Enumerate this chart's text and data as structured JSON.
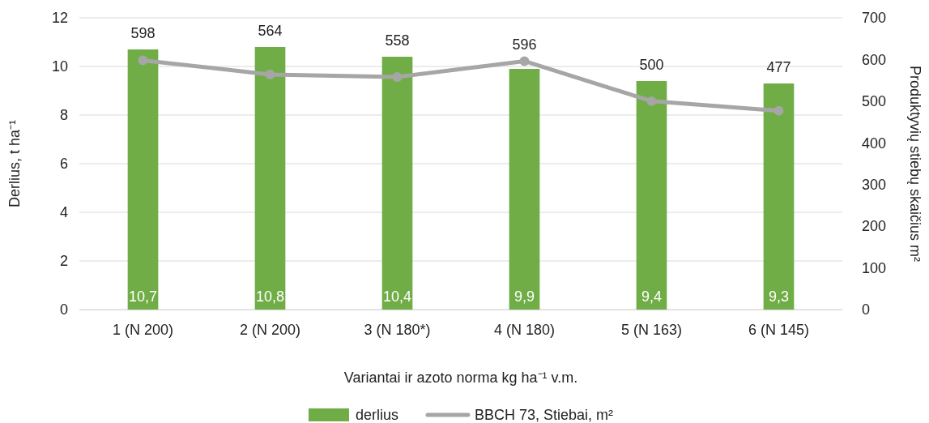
{
  "chart_data": {
    "type": "bar",
    "xlabel": "Variantai ir azoto norma kg ha⁻¹ v.m.",
    "ylabel": "Derlius, t ha⁻¹",
    "y2label": "Produktyvių stiebų skaičius m²",
    "categories": [
      "1 (N 200)",
      "2 (N 200)",
      "3 (N 180*)",
      "4 (N 180)",
      "5 (N 163)",
      "6 (N 145)"
    ],
    "series": [
      {
        "name": "derlius",
        "color": "#70ad47",
        "values": [
          10.7,
          10.8,
          10.4,
          9.9,
          9.4,
          9.3
        ],
        "value_labels": [
          "10,7",
          "10,8",
          "10,4",
          "9,9",
          "9,4",
          "9,3"
        ]
      },
      {
        "name": "BBCH 73, Stiebai, m²",
        "type": "line",
        "axis": "y2",
        "color": "#a6a6a6",
        "marker": "circle",
        "values": [
          598,
          564,
          558,
          596,
          500,
          477
        ],
        "value_labels": [
          "598",
          "564",
          "558",
          "596",
          "500",
          "477"
        ]
      }
    ],
    "ylim": [
      0,
      12
    ],
    "yticks": [
      0,
      2,
      4,
      6,
      8,
      10,
      12
    ],
    "y2lim": [
      0,
      700
    ],
    "y2ticks": [
      0,
      100,
      200,
      300,
      400,
      500,
      600,
      700
    ],
    "grid": "y",
    "legend": "bottom"
  }
}
